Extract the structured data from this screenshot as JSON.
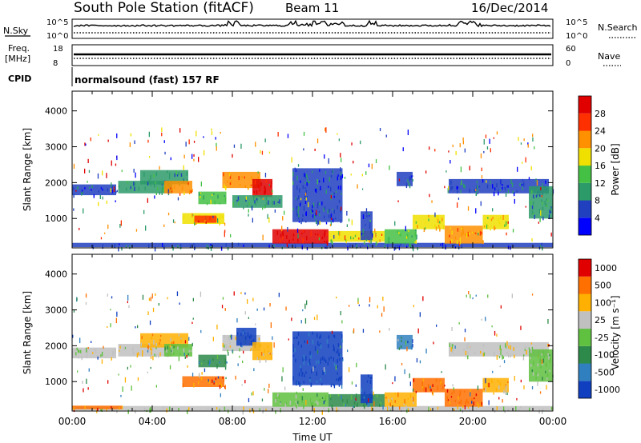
{
  "header": {
    "station": "South Pole Station (fitACF)",
    "beam": "Beam 11",
    "date": "16/Dec/2014"
  },
  "status_panels": {
    "nsky_label": "N.Sky",
    "nsky_top_tick": "10^5",
    "nsky_bottom_tick": "10^0",
    "nsearch_label": "N.Search",
    "nsearch_top_tick": "10^5",
    "nsearch_bottom_tick": "10^0",
    "freq_label": "Freq.",
    "freq_unit": "[MHz]",
    "freq_ticks": [
      "18",
      "8"
    ],
    "nave_label": "Nave",
    "nave_ticks": [
      "60",
      "0"
    ],
    "cpid_label": "CPID",
    "cpid_value": "normalsound (fast) 157 RF"
  },
  "chart_data": [
    {
      "type": "heatmap",
      "name": "power",
      "xlabel": "Time UT",
      "ylabel": "Slant Range [km]",
      "xlim": [
        0,
        24
      ],
      "ylim": [
        180,
        4550
      ],
      "yticks": [
        1000,
        2000,
        3000,
        4000
      ],
      "colorbar": {
        "label": "Power [dB]",
        "ticks": [
          "4",
          "8",
          "12",
          "16",
          "20",
          "24",
          "28"
        ],
        "colors": [
          "#0000ff",
          "#2040c0",
          "#2d9a6a",
          "#44c044",
          "#f0e000",
          "#ff9000",
          "#ff3000",
          "#e00000"
        ]
      },
      "regions": [
        {
          "t0": 0.0,
          "t1": 24.0,
          "r0": 200,
          "r1": 320,
          "level": 1
        },
        {
          "t0": 0.0,
          "t1": 2.2,
          "r0": 1650,
          "r1": 1950,
          "level": 1
        },
        {
          "t0": 2.3,
          "t1": 5.0,
          "r0": 1700,
          "r1": 2050,
          "level": 2
        },
        {
          "t0": 3.4,
          "t1": 5.8,
          "r0": 1950,
          "r1": 2350,
          "level": 2
        },
        {
          "t0": 4.6,
          "t1": 6.0,
          "r0": 1700,
          "r1": 2050,
          "level": 5
        },
        {
          "t0": 5.5,
          "t1": 7.6,
          "r0": 850,
          "r1": 1150,
          "level": 4
        },
        {
          "t0": 6.1,
          "t1": 7.2,
          "r0": 880,
          "r1": 1080,
          "level": 6
        },
        {
          "t0": 6.3,
          "t1": 7.7,
          "r0": 1400,
          "r1": 1750,
          "level": 3
        },
        {
          "t0": 7.5,
          "t1": 9.4,
          "r0": 1850,
          "r1": 2300,
          "level": 5
        },
        {
          "t0": 9.0,
          "t1": 10.0,
          "r0": 1600,
          "r1": 2100,
          "level": 7
        },
        {
          "t0": 8.0,
          "t1": 10.5,
          "r0": 1300,
          "r1": 1650,
          "level": 2
        },
        {
          "t0": 10.0,
          "t1": 12.8,
          "r0": 300,
          "r1": 700,
          "level": 7
        },
        {
          "t0": 12.8,
          "t1": 15.6,
          "r0": 350,
          "r1": 650,
          "level": 4
        },
        {
          "t0": 15.6,
          "t1": 17.2,
          "r0": 300,
          "r1": 700,
          "level": 3
        },
        {
          "t0": 17.0,
          "t1": 18.6,
          "r0": 700,
          "r1": 1100,
          "level": 4
        },
        {
          "t0": 18.6,
          "t1": 20.5,
          "r0": 300,
          "r1": 800,
          "level": 5
        },
        {
          "t0": 20.5,
          "t1": 21.8,
          "r0": 700,
          "r1": 1100,
          "level": 4
        },
        {
          "t0": 14.4,
          "t1": 15.0,
          "r0": 400,
          "r1": 1200,
          "level": 1
        },
        {
          "t0": 18.8,
          "t1": 23.8,
          "r0": 1700,
          "r1": 2100,
          "level": 1
        },
        {
          "t0": 22.8,
          "t1": 24.0,
          "r0": 1000,
          "r1": 1900,
          "level": 2
        },
        {
          "t0": 11.0,
          "t1": 13.5,
          "r0": 900,
          "r1": 2400,
          "level": 1
        },
        {
          "t0": 16.2,
          "t1": 17.0,
          "r0": 1900,
          "r1": 2300,
          "level": 1
        }
      ]
    },
    {
      "type": "heatmap",
      "name": "velocity",
      "xlabel": "Time UT",
      "ylabel": "Slant Range [km]",
      "xlim": [
        0,
        24
      ],
      "ylim": [
        180,
        4550
      ],
      "yticks": [
        1000,
        2000,
        3000,
        4000
      ],
      "xticks": [
        "00:00",
        "04:00",
        "08:00",
        "12:00",
        "16:00",
        "20:00",
        "00:00"
      ],
      "colorbar": {
        "label": "Velocity [m s⁻¹]",
        "ticks": [
          "1000",
          "500",
          "100",
          "25",
          "-25",
          "-100",
          "-500",
          "-1000"
        ],
        "colors": [
          "#1040c0",
          "#3080c0",
          "#2d8a4a",
          "#60c040",
          "#c0c0c0",
          "#ffb000",
          "#ff7000",
          "#e00000"
        ]
      },
      "regions": [
        {
          "t0": 0.0,
          "t1": 24.0,
          "r0": 200,
          "r1": 320,
          "level": 4
        },
        {
          "t0": 0.0,
          "t1": 2.2,
          "r0": 1650,
          "r1": 1950,
          "level": 4
        },
        {
          "t0": 2.3,
          "t1": 5.0,
          "r0": 1700,
          "r1": 2050,
          "level": 4
        },
        {
          "t0": 3.4,
          "t1": 5.8,
          "r0": 1950,
          "r1": 2350,
          "level": 5
        },
        {
          "t0": 4.6,
          "t1": 6.0,
          "r0": 1700,
          "r1": 2050,
          "level": 3
        },
        {
          "t0": 5.5,
          "t1": 7.6,
          "r0": 850,
          "r1": 1150,
          "level": 6
        },
        {
          "t0": 6.3,
          "t1": 7.7,
          "r0": 1400,
          "r1": 1750,
          "level": 2
        },
        {
          "t0": 7.5,
          "t1": 9.4,
          "r0": 1850,
          "r1": 2300,
          "level": 4
        },
        {
          "t0": 8.2,
          "t1": 9.2,
          "r0": 2000,
          "r1": 2500,
          "level": 0
        },
        {
          "t0": 9.0,
          "t1": 10.0,
          "r0": 1600,
          "r1": 2100,
          "level": 5
        },
        {
          "t0": 10.0,
          "t1": 12.8,
          "r0": 300,
          "r1": 700,
          "level": 3
        },
        {
          "t0": 12.8,
          "t1": 15.6,
          "r0": 300,
          "r1": 650,
          "level": 2
        },
        {
          "t0": 15.6,
          "t1": 17.2,
          "r0": 300,
          "r1": 700,
          "level": 5
        },
        {
          "t0": 17.0,
          "t1": 18.6,
          "r0": 700,
          "r1": 1100,
          "level": 6
        },
        {
          "t0": 18.6,
          "t1": 20.5,
          "r0": 300,
          "r1": 800,
          "level": 6
        },
        {
          "t0": 20.5,
          "t1": 21.8,
          "r0": 700,
          "r1": 1100,
          "level": 5
        },
        {
          "t0": 14.4,
          "t1": 15.0,
          "r0": 400,
          "r1": 1200,
          "level": 0
        },
        {
          "t0": 18.8,
          "t1": 23.8,
          "r0": 1700,
          "r1": 2100,
          "level": 4
        },
        {
          "t0": 22.8,
          "t1": 24.0,
          "r0": 1000,
          "r1": 1900,
          "level": 3
        },
        {
          "t0": 11.0,
          "t1": 13.5,
          "r0": 900,
          "r1": 2400,
          "level": 0
        },
        {
          "t0": 16.2,
          "t1": 17.0,
          "r0": 1900,
          "r1": 2300,
          "level": 1
        },
        {
          "t0": 0.0,
          "t1": 2.5,
          "r0": 230,
          "r1": 330,
          "level": 6
        }
      ]
    }
  ]
}
